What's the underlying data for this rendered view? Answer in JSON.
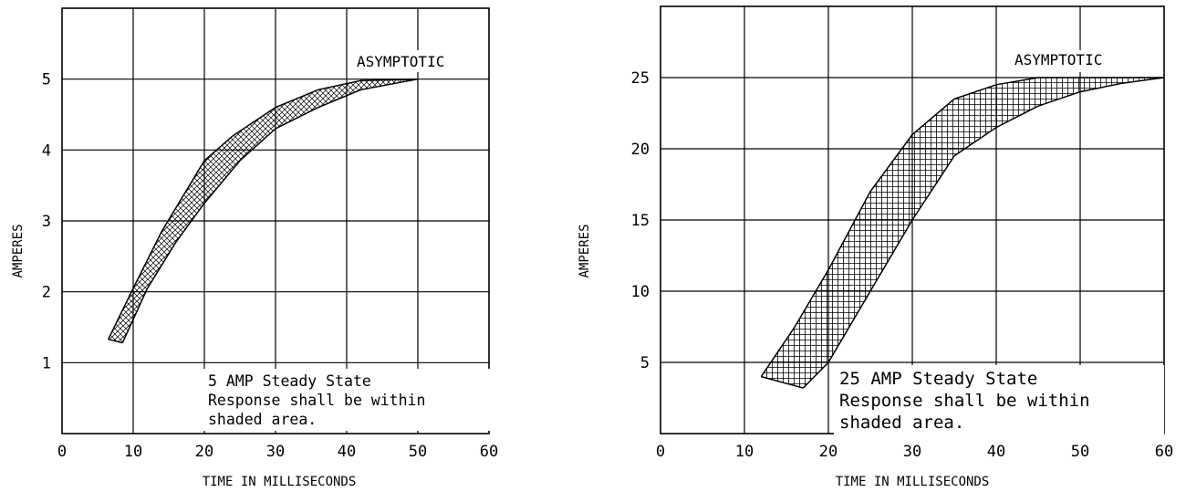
{
  "chart_data": [
    {
      "type": "area",
      "xlabel": "TIME IN MILLISECONDS",
      "ylabel": "AMPERES",
      "xlim": [
        0,
        60
      ],
      "ylim": [
        0,
        6
      ],
      "x_ticks": [
        "0",
        "10",
        "20",
        "30",
        "40",
        "50",
        "60"
      ],
      "y_ticks": [
        "1",
        "2",
        "3",
        "4",
        "5"
      ],
      "grid": true,
      "annotation_top": "ASYMPTOTIC",
      "note_lines": [
        "5 AMP Steady State",
        "Response shall be within",
        "shaded area."
      ],
      "series": [
        {
          "name": "",
          "x": [
            6.5,
            10,
            14,
            20,
            24,
            30,
            36,
            42,
            50
          ],
          "y": [
            1.33,
            2.05,
            2.85,
            3.85,
            4.2,
            4.6,
            4.85,
            4.98,
            5.0
          ]
        },
        {
          "name": "",
          "x": [
            8.5,
            12,
            16,
            20,
            25,
            30,
            36,
            42,
            50
          ],
          "y": [
            1.28,
            2.05,
            2.7,
            3.25,
            3.85,
            4.3,
            4.6,
            4.85,
            5.0
          ]
        }
      ]
    },
    {
      "type": "area",
      "xlabel": "TIME IN MILLISECONDS",
      "ylabel": "AMPERES",
      "xlim": [
        0,
        60
      ],
      "ylim": [
        0,
        30
      ],
      "x_ticks": [
        "0",
        "10",
        "20",
        "30",
        "40",
        "50",
        "60"
      ],
      "y_ticks": [
        "5",
        "10",
        "15",
        "20",
        "25"
      ],
      "grid": true,
      "annotation_top": "ASYMPTOTIC",
      "note_lines": [
        "25 AMP Steady State",
        "Response shall be within",
        "shaded area."
      ],
      "series": [
        {
          "name": "",
          "x": [
            12,
            16,
            20,
            25,
            30,
            35,
            40,
            45,
            50,
            60
          ],
          "y": [
            4,
            7.5,
            11.5,
            17,
            21,
            23.5,
            24.5,
            25,
            25,
            25
          ]
        },
        {
          "name": "",
          "x": [
            17,
            20,
            25,
            30,
            35,
            40,
            45,
            50,
            55,
            60
          ],
          "y": [
            3.2,
            5,
            10,
            15,
            19.5,
            21.5,
            23,
            24,
            24.6,
            25
          ]
        }
      ]
    }
  ]
}
